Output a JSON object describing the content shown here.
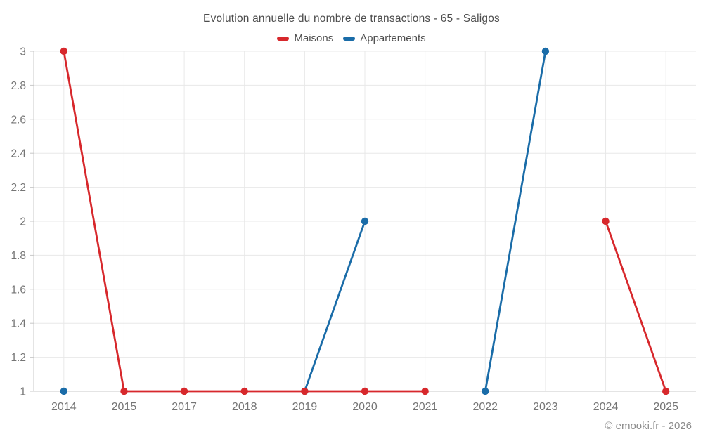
{
  "title": "Evolution annuelle du nombre de transactions - 65 - Saligos",
  "legend": [
    {
      "label": "Maisons",
      "color": "#d7282c"
    },
    {
      "label": "Appartements",
      "color": "#1a6ca8"
    }
  ],
  "copyright": "© emooki.fr - 2026",
  "colors": {
    "maisons": "#d7282c",
    "appartements": "#1a6ca8",
    "gridline": "#e8e8e8",
    "axis": "#c8c8c8",
    "tick_label": "#757575",
    "title_text": "#4d4d4d",
    "copyright_text": "#8c8c8c"
  },
  "chart_data": {
    "type": "line",
    "title": "Evolution annuelle du nombre de transactions - 65 - Saligos",
    "categories": [
      "2014",
      "2015",
      "2017",
      "2018",
      "2019",
      "2020",
      "2021",
      "2022",
      "2023",
      "2024",
      "2025"
    ],
    "series": [
      {
        "name": "Maisons",
        "color": "#d7282c",
        "values": [
          3,
          1,
          1,
          1,
          1,
          1,
          1,
          null,
          null,
          2,
          1
        ]
      },
      {
        "name": "Appartements",
        "color": "#1a6ca8",
        "values": [
          1,
          null,
          null,
          null,
          1,
          2,
          null,
          1,
          3,
          null,
          null
        ]
      }
    ],
    "xlabel": "",
    "ylabel": "",
    "ylim": [
      1,
      3
    ],
    "yticks": [
      1,
      1.2,
      1.4,
      1.6,
      1.8,
      2,
      2.2,
      2.4,
      2.6,
      2.8,
      3
    ],
    "grid": true,
    "legend_position": "top"
  }
}
